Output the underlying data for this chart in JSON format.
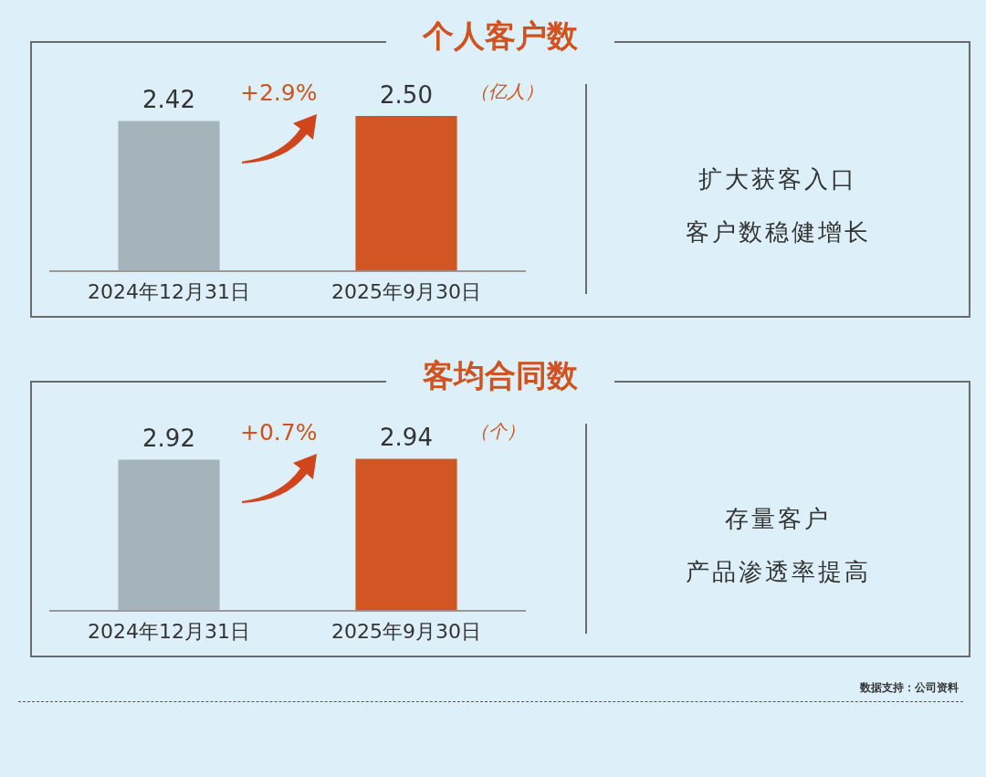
{
  "chart_data": [
    {
      "type": "bar",
      "title": "个人客户数",
      "ylabel": "（亿人）",
      "categories": [
        "2024年12月31日",
        "2025年9月30日"
      ],
      "values": [
        2.42,
        2.5
      ],
      "value_labels": [
        "2.42",
        "2.50"
      ],
      "colors": [
        "#a5b4ba",
        "#d15623"
      ],
      "annotations": [
        "+2.9%",
        "扩大获客入口",
        "客户数稳健增长"
      ]
    },
    {
      "type": "bar",
      "title": "客均合同数",
      "ylabel": "（个）",
      "categories": [
        "2024年12月31日",
        "2025年9月30日"
      ],
      "values": [
        2.92,
        2.94
      ],
      "value_labels": [
        "2.92",
        "2.94"
      ],
      "colors": [
        "#a5b4ba",
        "#d15623"
      ],
      "annotations": [
        "+0.7%",
        "存量客户",
        "产品渗透率提高",
        "数据支持：公司资料"
      ]
    }
  ]
}
